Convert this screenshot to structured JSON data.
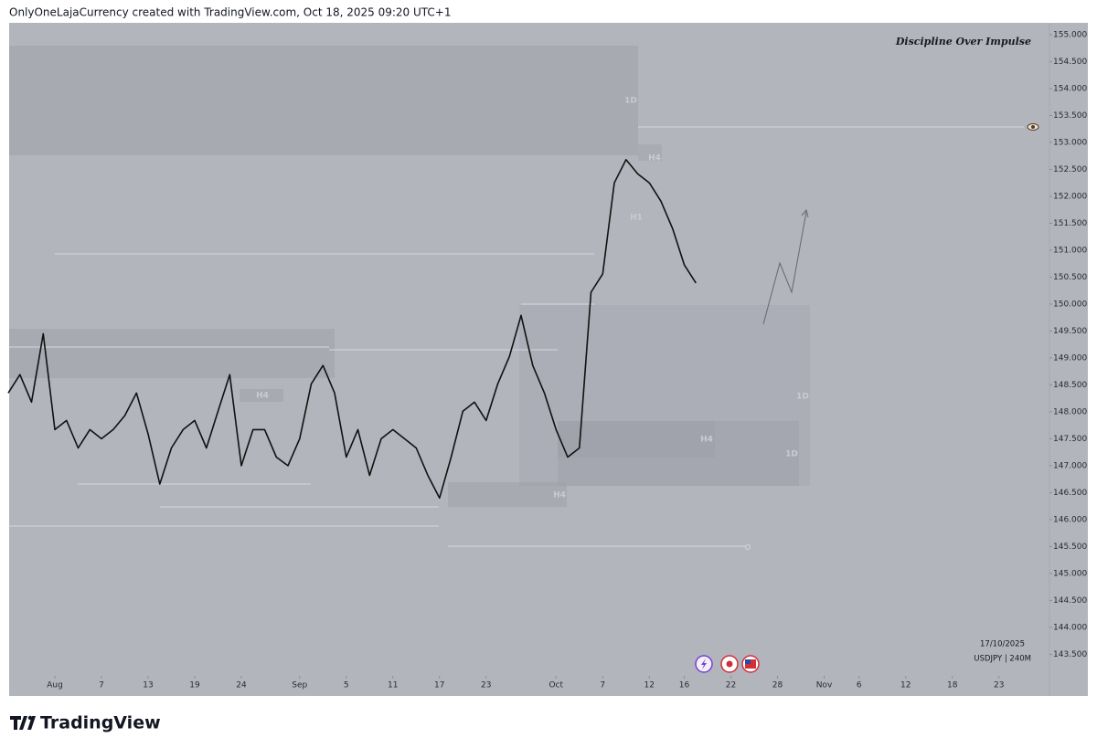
{
  "header": "OnlyOneLajaCurrency created with TradingView.com, Oct 18, 2025 09:20 UTC+1",
  "brand": "TradingView",
  "chart_data": {
    "type": "line",
    "title": "Discipline Over Impulse",
    "symbol_label": "USDJPY | 240M",
    "date_label": "17/10/2025",
    "color": "#111111",
    "annotations": [
      "1D",
      "H1",
      "H4",
      "H4",
      "1D",
      "H4",
      "1D",
      "H4"
    ],
    "x": [
      "2025-07-28",
      "2025-07-29",
      "2025-07-30",
      "2025-07-31",
      "2025-08-01",
      "2025-08-04",
      "2025-08-05",
      "2025-08-06",
      "2025-08-07",
      "2025-08-08",
      "2025-08-11",
      "2025-08-12",
      "2025-08-13",
      "2025-08-14",
      "2025-08-15",
      "2025-08-18",
      "2025-08-19",
      "2025-08-20",
      "2025-08-21",
      "2025-08-22",
      "2025-08-25",
      "2025-08-26",
      "2025-08-27",
      "2025-08-28",
      "2025-08-29",
      "2025-09-01",
      "2025-09-02",
      "2025-09-03",
      "2025-09-04",
      "2025-09-05",
      "2025-09-08",
      "2025-09-09",
      "2025-09-10",
      "2025-09-11",
      "2025-09-12",
      "2025-09-15",
      "2025-09-16",
      "2025-09-17",
      "2025-09-18",
      "2025-09-19",
      "2025-09-22",
      "2025-09-23",
      "2025-09-24",
      "2025-09-25",
      "2025-09-26",
      "2025-09-29",
      "2025-09-30",
      "2025-10-01",
      "2025-10-02",
      "2025-10-03",
      "2025-10-06",
      "2025-10-07",
      "2025-10-08",
      "2025-10-09",
      "2025-10-10",
      "2025-10-13",
      "2025-10-14",
      "2025-10-15",
      "2025-10-16",
      "2025-10-17"
    ],
    "values": [
      148.35,
      148.69,
      148.18,
      149.45,
      147.67,
      147.84,
      147.33,
      147.67,
      147.5,
      147.67,
      147.93,
      148.35,
      147.59,
      146.66,
      147.33,
      147.67,
      147.84,
      147.33,
      148.01,
      148.69,
      147.0,
      147.67,
      147.67,
      147.16,
      147.0,
      147.5,
      148.52,
      148.86,
      148.35,
      147.16,
      147.67,
      146.82,
      147.5,
      147.67,
      147.5,
      147.33,
      146.82,
      146.4,
      147.16,
      148.01,
      148.18,
      147.84,
      148.52,
      149.03,
      149.79,
      148.86,
      148.35,
      147.67,
      147.16,
      147.33,
      150.22,
      150.56,
      152.25,
      152.68,
      152.42,
      152.25,
      151.91,
      151.4,
      150.73,
      150.39
    ],
    "ylim": [
      143.1,
      155.22
    ],
    "yticks": [
      {
        "value": 143.5,
        "label": "143.500"
      },
      {
        "value": 144,
        "label": "144.000"
      },
      {
        "value": 144.5,
        "label": "144.500"
      },
      {
        "value": 145,
        "label": "145.000"
      },
      {
        "value": 145.5,
        "label": "145.500"
      },
      {
        "value": 146,
        "label": "146.000"
      },
      {
        "value": 146.5,
        "label": "146.500"
      },
      {
        "value": 147,
        "label": "147.000"
      },
      {
        "value": 147.5,
        "label": "147.500"
      },
      {
        "value": 148,
        "label": "148.000"
      },
      {
        "value": 148.5,
        "label": "148.500"
      },
      {
        "value": 149,
        "label": "149.000"
      },
      {
        "value": 149.5,
        "label": "149.500"
      },
      {
        "value": 150,
        "label": "150.000"
      },
      {
        "value": 150.5,
        "label": "150.500"
      },
      {
        "value": 151,
        "label": "151.000"
      },
      {
        "value": 151.5,
        "label": "151.500"
      },
      {
        "value": 152,
        "label": "152.000"
      },
      {
        "value": 152.5,
        "label": "152.500"
      },
      {
        "value": 153,
        "label": "153.000"
      },
      {
        "value": 153.5,
        "label": "153.500"
      },
      {
        "value": 154,
        "label": "154.000"
      },
      {
        "value": 154.5,
        "label": "154.500"
      },
      {
        "value": 155,
        "label": "155.000"
      }
    ],
    "xticks": [
      {
        "value": "2025-08-01",
        "label": "Aug"
      },
      {
        "value": "2025-08-07",
        "label": "7"
      },
      {
        "value": "2025-08-13",
        "label": "13"
      },
      {
        "value": "2025-08-19",
        "label": "19"
      },
      {
        "value": "2025-08-24",
        "label": "24"
      },
      {
        "value": "2025-09-01",
        "label": "Sep"
      },
      {
        "value": "2025-09-05",
        "label": "5"
      },
      {
        "value": "2025-09-11",
        "label": "11"
      },
      {
        "value": "2025-09-17",
        "label": "17"
      },
      {
        "value": "2025-09-23",
        "label": "23"
      },
      {
        "value": "2025-10-01",
        "label": "Oct"
      },
      {
        "value": "2025-10-07",
        "label": "7"
      },
      {
        "value": "2025-10-12",
        "label": "12"
      },
      {
        "value": "2025-10-16",
        "label": "16"
      },
      {
        "value": "2025-10-22",
        "label": "22"
      },
      {
        "value": "2025-10-28",
        "label": "28"
      },
      {
        "value": "2025-11-03",
        "label": "Nov"
      },
      {
        "value": "2025-11-06",
        "label": "6"
      },
      {
        "value": "2025-11-12",
        "label": "12"
      },
      {
        "value": "2025-11-18",
        "label": "18"
      },
      {
        "value": "2025-11-23",
        "label": "23"
      }
    ]
  }
}
